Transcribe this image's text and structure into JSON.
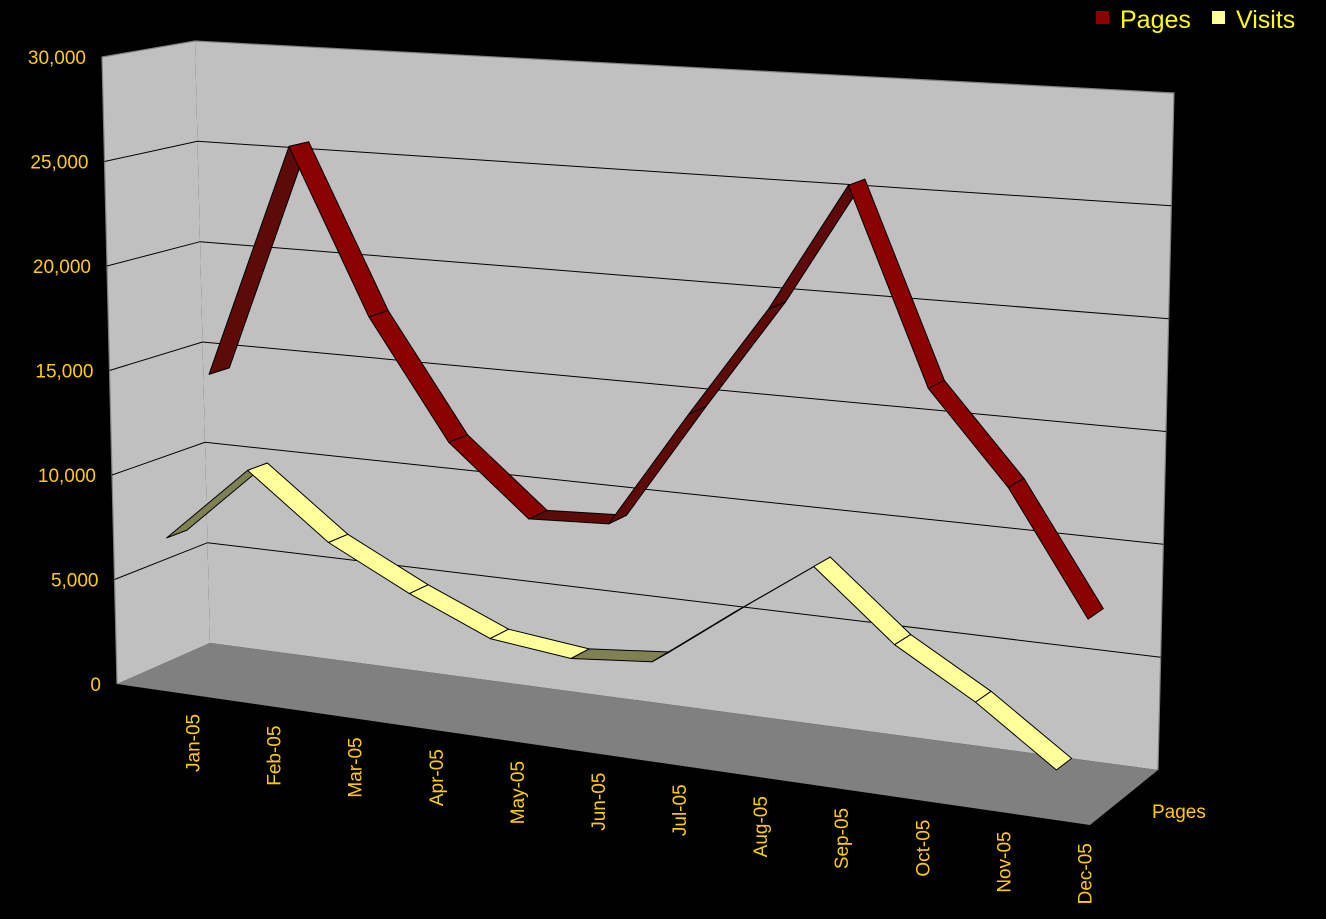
{
  "chart_data": {
    "type": "line",
    "style": "3d-ribbon",
    "categories": [
      "Jan-05",
      "Feb-05",
      "Mar-05",
      "Apr-05",
      "May-05",
      "Jun-05",
      "Jul-05",
      "Aug-05",
      "Sep-05",
      "Oct-05",
      "Nov-05",
      "Dec-05"
    ],
    "series": [
      {
        "name": "Pages",
        "values": [
          14300,
          26000,
          18200,
          12600,
          9400,
          9700,
          15600,
          21300,
          27900,
          18500,
          14200,
          8300
        ],
        "color": "#8b0000",
        "side_color": "#5c0a0a"
      },
      {
        "name": "Visits",
        "values": [
          7100,
          10900,
          8000,
          6100,
          4500,
          4100,
          4500,
          7400,
          10200,
          7000,
          4800,
          2100
        ],
        "color": "#ffff99",
        "side_color": "#808055"
      }
    ],
    "depth_axis_label": "Pages",
    "y_ticks": [
      "0",
      "5,000",
      "10,000",
      "15,000",
      "20,000",
      "25,000",
      "30,000"
    ],
    "ylim": [
      0,
      30000
    ],
    "y_step": 5000,
    "grid": true,
    "legend": "top-right",
    "title": "",
    "xlabel": "",
    "ylabel": ""
  },
  "colors": {
    "background": "#000000",
    "wall": "#c0c0c0",
    "side_wall": "#c0c0c0",
    "floor": "#808080",
    "gridline": "#000000",
    "frame": "#808080",
    "text": "#ffcc00",
    "legend_text": "#ffff00"
  }
}
